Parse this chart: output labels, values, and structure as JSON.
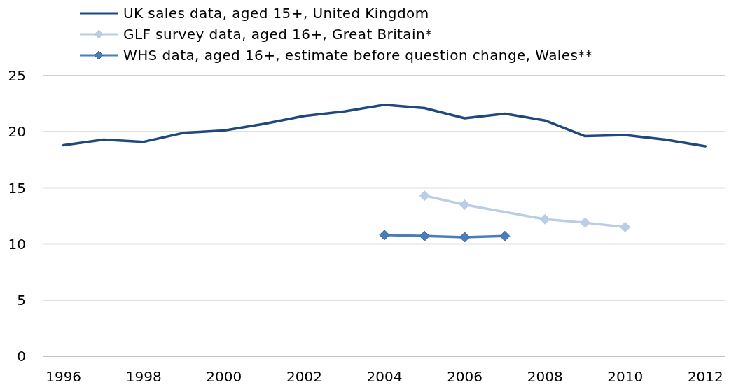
{
  "chart_data": {
    "type": "line",
    "x": [
      1996,
      1997,
      1998,
      1999,
      2000,
      2001,
      2002,
      2003,
      2004,
      2005,
      2006,
      2007,
      2008,
      2009,
      2010,
      2011,
      2012
    ],
    "xlim": [
      1995.5,
      2012.5
    ],
    "xticks": [
      1996,
      1998,
      2000,
      2002,
      2004,
      2006,
      2008,
      2010,
      2012
    ],
    "ylim": [
      0,
      25
    ],
    "yticks": [
      0,
      5,
      10,
      15,
      20,
      25
    ],
    "grid": "y",
    "legend": "top left",
    "line_style": "solid",
    "series": [
      {
        "name": "UK sales data, aged 15+, United Kingdom",
        "color": "#1f497d",
        "marker": "none",
        "values": [
          18.8,
          19.3,
          19.1,
          19.9,
          20.1,
          20.7,
          21.4,
          21.8,
          22.4,
          22.1,
          21.2,
          21.6,
          21.0,
          19.6,
          19.7,
          19.3,
          18.7
        ]
      },
      {
        "name": "GLF survey data, aged 16+, Great Britain*",
        "color": "#b9cde5",
        "marker": "diamond",
        "x": [
          2005,
          2006,
          2008,
          2009,
          2010
        ],
        "values": [
          14.3,
          13.5,
          12.2,
          11.9,
          11.5
        ]
      },
      {
        "name": "WHS data, aged 16+, estimate before question change, Wales**",
        "color": "#4a7ebb",
        "marker": "diamond",
        "x": [
          2004,
          2005,
          2006,
          2007
        ],
        "values": [
          10.8,
          10.7,
          10.6,
          10.7
        ]
      }
    ]
  }
}
